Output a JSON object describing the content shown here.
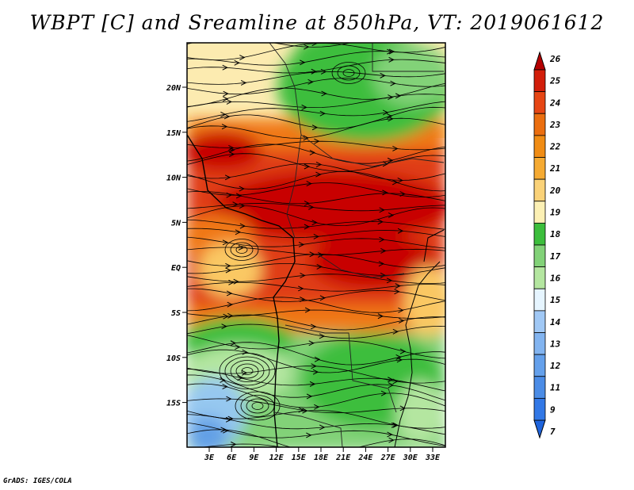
{
  "title": "WBPT [C] and Sreamline at 850hPa, VT: 2019061612",
  "credit": "GrADS: IGES/COLA",
  "map": {
    "lat_ticks": [
      "20N",
      "15N",
      "10N",
      "5N",
      "EQ",
      "5S",
      "10S",
      "15S"
    ],
    "lon_ticks": [
      "3E",
      "6E",
      "9E",
      "12E",
      "15E",
      "18E",
      "21E",
      "24E",
      "27E",
      "30E",
      "33E"
    ],
    "colors": {
      "very_hot": "#c80000",
      "hot": "#e03c14",
      "warm": "#f07814",
      "mild": "#fac864",
      "cool": "#fcebb0",
      "green_dark": "#3cbe3c",
      "green": "#82d278",
      "green_light": "#b4e6a0",
      "blue_light": "#96c8f0",
      "blue": "#64a0e6"
    }
  },
  "colorbar": {
    "labels": [
      "7",
      "9",
      "11",
      "12",
      "13",
      "14",
      "15",
      "16",
      "17",
      "18",
      "19",
      "20",
      "21",
      "22",
      "23",
      "24",
      "25",
      "26"
    ],
    "colors": [
      "#1e64dc",
      "#3278e6",
      "#4b8ce6",
      "#64a0eb",
      "#82b4f0",
      "#a0c8f5",
      "#e6f5ff",
      "#b4e6a0",
      "#82d278",
      "#3cbe3c",
      "#fcf0b4",
      "#fad278",
      "#f5aa32",
      "#f08c14",
      "#eb6e0f",
      "#e64614",
      "#d21e0a",
      "#b40000"
    ]
  }
}
